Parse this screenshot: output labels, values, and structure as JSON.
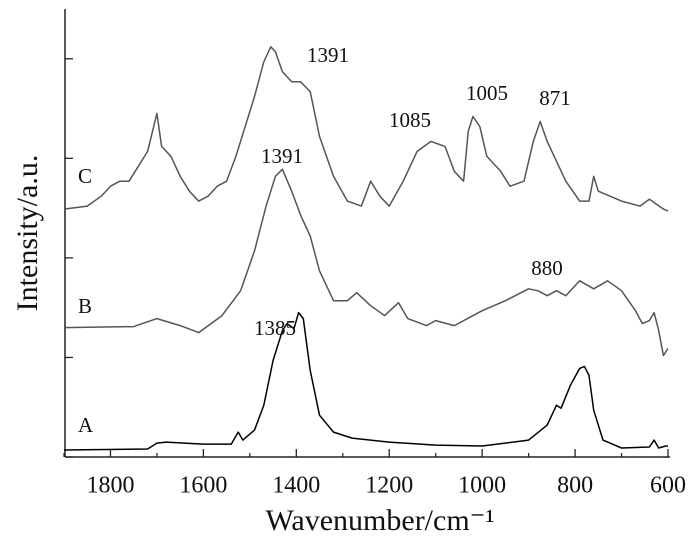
{
  "chart_data": {
    "type": "line",
    "x_label": "Wavenumber/cm⁻¹",
    "y_label": "Intensity/a.u.",
    "xlim": [
      1900,
      600
    ],
    "xticks": [
      1800,
      1600,
      1400,
      1200,
      1000,
      800,
      600
    ],
    "xticks_minor": [
      1900,
      1700,
      1500,
      1300,
      1100,
      900,
      700
    ],
    "ylim": [
      0,
      4.5
    ],
    "yticks": [
      0,
      1,
      2,
      3,
      4
    ],
    "series": [
      {
        "name": "A",
        "color": "#000000",
        "x": [
          1900,
          1720,
          1700,
          1680,
          1600,
          1540,
          1525,
          1515,
          1490,
          1470,
          1450,
          1430,
          1420,
          1405,
          1395,
          1385,
          1370,
          1350,
          1320,
          1280,
          1200,
          1100,
          1000,
          900,
          860,
          840,
          830,
          810,
          790,
          780,
          770,
          760,
          740,
          700,
          640,
          630,
          620,
          605,
          600
        ],
        "values": [
          0.07,
          0.08,
          0.14,
          0.15,
          0.13,
          0.13,
          0.25,
          0.17,
          0.27,
          0.52,
          0.97,
          1.27,
          1.34,
          1.29,
          1.45,
          1.39,
          0.87,
          0.42,
          0.25,
          0.19,
          0.15,
          0.12,
          0.11,
          0.17,
          0.32,
          0.52,
          0.49,
          0.72,
          0.89,
          0.91,
          0.82,
          0.47,
          0.17,
          0.09,
          0.1,
          0.17,
          0.09,
          0.11,
          0.11
        ]
      },
      {
        "name": "B",
        "color": "#555555",
        "x": [
          1900,
          1750,
          1700,
          1650,
          1610,
          1560,
          1520,
          1490,
          1465,
          1445,
          1430,
          1410,
          1390,
          1370,
          1350,
          1320,
          1290,
          1270,
          1240,
          1210,
          1180,
          1160,
          1120,
          1100,
          1060,
          1000,
          950,
          900,
          880,
          860,
          840,
          820,
          790,
          760,
          730,
          700,
          670,
          655,
          640,
          630,
          620,
          610,
          600
        ],
        "values": [
          1.3,
          1.31,
          1.39,
          1.32,
          1.25,
          1.42,
          1.67,
          2.07,
          2.52,
          2.82,
          2.89,
          2.67,
          2.42,
          2.22,
          1.87,
          1.57,
          1.57,
          1.65,
          1.52,
          1.42,
          1.55,
          1.39,
          1.32,
          1.37,
          1.32,
          1.47,
          1.57,
          1.69,
          1.67,
          1.62,
          1.67,
          1.62,
          1.77,
          1.69,
          1.77,
          1.67,
          1.47,
          1.34,
          1.37,
          1.45,
          1.27,
          1.02,
          1.09
        ]
      },
      {
        "name": "C",
        "color": "#555555",
        "x": [
          1900,
          1850,
          1820,
          1800,
          1780,
          1760,
          1740,
          1720,
          1700,
          1690,
          1670,
          1650,
          1630,
          1610,
          1590,
          1570,
          1550,
          1530,
          1510,
          1490,
          1470,
          1455,
          1445,
          1430,
          1410,
          1391,
          1370,
          1350,
          1320,
          1290,
          1260,
          1240,
          1220,
          1200,
          1170,
          1140,
          1110,
          1080,
          1060,
          1040,
          1030,
          1020,
          1005,
          990,
          960,
          940,
          910,
          890,
          875,
          860,
          840,
          820,
          790,
          770,
          760,
          750,
          700,
          660,
          640,
          610,
          600
        ],
        "values": [
          2.49,
          2.52,
          2.62,
          2.72,
          2.77,
          2.77,
          2.92,
          3.07,
          3.45,
          3.12,
          3.02,
          2.82,
          2.67,
          2.57,
          2.62,
          2.72,
          2.77,
          3.02,
          3.32,
          3.62,
          3.97,
          4.12,
          4.07,
          3.87,
          3.77,
          3.77,
          3.67,
          3.22,
          2.82,
          2.57,
          2.52,
          2.77,
          2.62,
          2.52,
          2.77,
          3.07,
          3.17,
          3.12,
          2.87,
          2.77,
          3.27,
          3.42,
          3.32,
          3.02,
          2.87,
          2.72,
          2.77,
          3.17,
          3.37,
          3.17,
          2.97,
          2.77,
          2.57,
          2.57,
          2.82,
          2.67,
          2.57,
          2.52,
          2.59,
          2.49,
          2.47
        ]
      }
    ],
    "annotations": [
      "1385",
      "1391",
      "880",
      "1391",
      "1085",
      "1005",
      "871"
    ]
  }
}
